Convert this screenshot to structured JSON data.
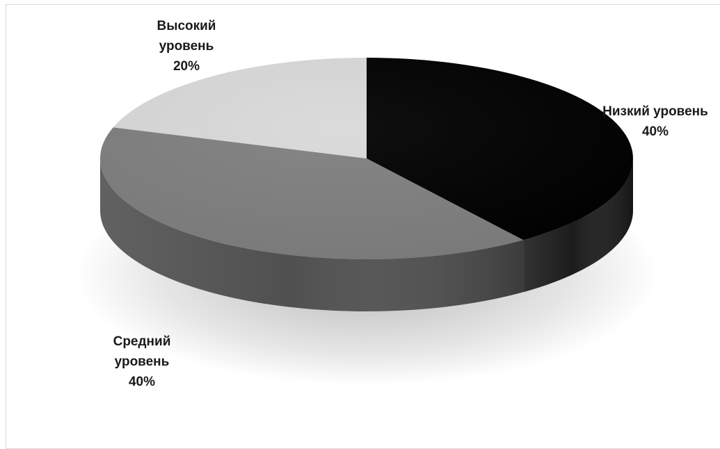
{
  "chart_data": {
    "type": "pie",
    "style": "3d",
    "title": "",
    "slices": [
      {
        "label_lines": [
          "Низкий уровень"
        ],
        "value": 40,
        "percent_label": "40%",
        "color": "#000000",
        "side_color": "#1c1c1c"
      },
      {
        "label_lines": [
          "Средний",
          "уровень"
        ],
        "value": 40,
        "percent_label": "40%",
        "color": "#7f7f7f",
        "side_color": "#505050"
      },
      {
        "label_lines": [
          "Высокий",
          "уровень"
        ],
        "value": 20,
        "percent_label": "20%",
        "color": "#d9d9d9",
        "side_color": "#a6a6a6"
      }
    ],
    "legend": "none"
  }
}
